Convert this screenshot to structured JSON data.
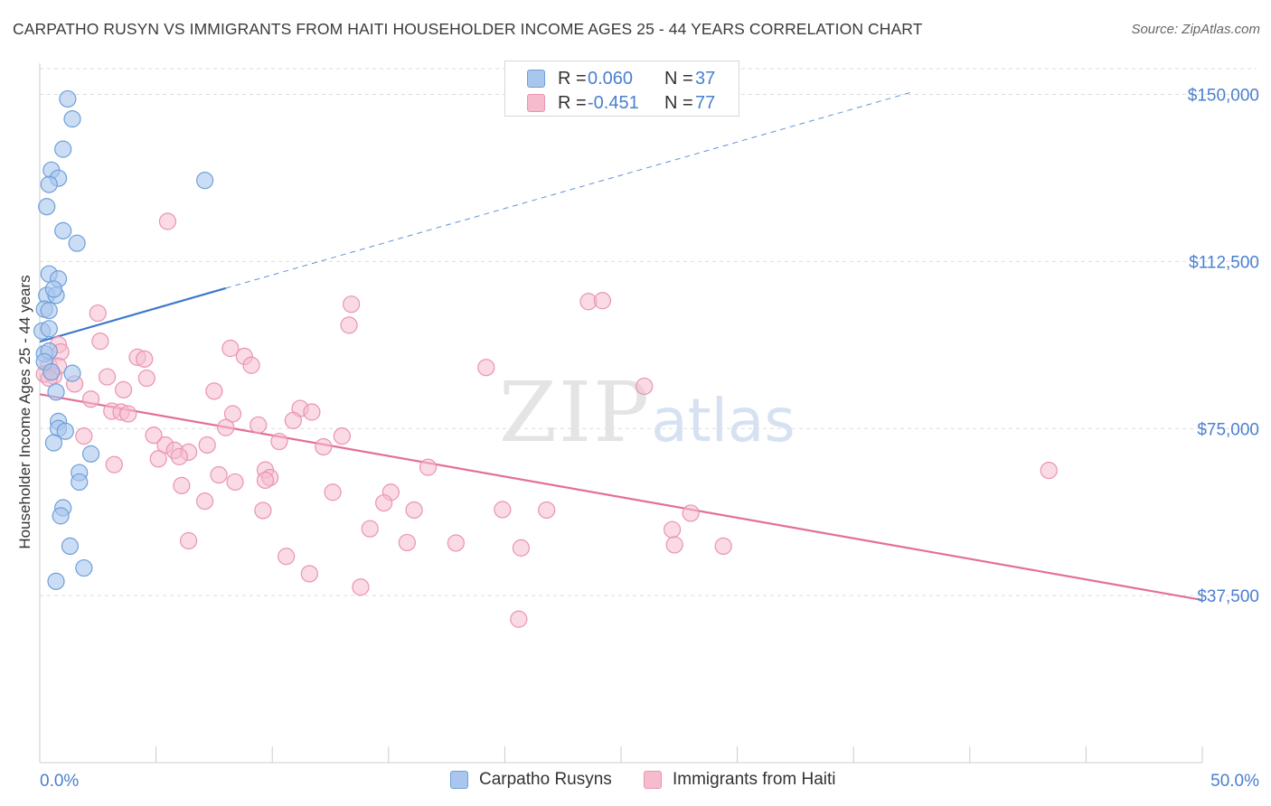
{
  "title": "CARPATHO RUSYN VS IMMIGRANTS FROM HAITI HOUSEHOLDER INCOME AGES 25 - 44 YEARS CORRELATION CHART",
  "source": "Source: ZipAtlas.com",
  "watermark": {
    "zip": "ZIP",
    "atlas": "atlas"
  },
  "stats": [
    {
      "label": "R =",
      "r": "0.060",
      "n_label": "N =",
      "n": "37"
    },
    {
      "label": "R =",
      "r": "-0.451",
      "n_label": "N =",
      "n": "77"
    }
  ],
  "legend": [
    {
      "label": "Carpatho Rusyns"
    },
    {
      "label": "Immigrants from Haiti"
    }
  ],
  "chart_data": {
    "type": "scatter",
    "title": "CARPATHO RUSYN VS IMMIGRANTS FROM HAITI HOUSEHOLDER INCOME AGES 25 - 44 YEARS CORRELATION CHART",
    "xlabel": "",
    "ylabel": "Householder Income Ages 25 - 44 years",
    "xlim": [
      0,
      50
    ],
    "ylim": [
      0,
      157000
    ],
    "x_tick_labels": [
      "0.0%",
      "50.0%"
    ],
    "y_ticks": [
      37500,
      75000,
      112500,
      150000
    ],
    "y_tick_labels": [
      "$37,500",
      "$75,000",
      "$112,500",
      "$150,000"
    ],
    "colors": {
      "blue_fill": "#a9c6ee",
      "blue_stroke": "#6f9fd8",
      "blue_line": "#3b78d0",
      "pink_fill": "#f6bccd",
      "pink_stroke": "#e994b0",
      "pink_line": "#e46f98",
      "tick_label": "#4a7fd0",
      "grid": "#dddddd"
    },
    "series": [
      {
        "name": "Carpatho Rusyns",
        "r": 0.06,
        "n": 37,
        "trend": {
          "x": [
            0,
            8
          ],
          "y": [
            94500,
            106500
          ]
        },
        "trend_dashed": {
          "x": [
            8,
            37.5
          ],
          "y": [
            106500,
            150500
          ]
        },
        "points": [
          [
            1.2,
            149000
          ],
          [
            1.4,
            144500
          ],
          [
            1.0,
            137700
          ],
          [
            0.5,
            133000
          ],
          [
            0.8,
            131200
          ],
          [
            0.4,
            129800
          ],
          [
            7.1,
            130700
          ],
          [
            0.3,
            124800
          ],
          [
            1.0,
            119400
          ],
          [
            1.6,
            116600
          ],
          [
            0.4,
            109700
          ],
          [
            0.8,
            108600
          ],
          [
            0.3,
            104900
          ],
          [
            0.7,
            104900
          ],
          [
            0.6,
            106300
          ],
          [
            0.2,
            101800
          ],
          [
            0.4,
            101500
          ],
          [
            0.1,
            96900
          ],
          [
            0.4,
            97400
          ],
          [
            0.2,
            91800
          ],
          [
            0.4,
            92400
          ],
          [
            0.2,
            90000
          ],
          [
            1.4,
            87400
          ],
          [
            0.5,
            87700
          ],
          [
            0.7,
            83200
          ],
          [
            0.8,
            76600
          ],
          [
            0.8,
            75000
          ],
          [
            1.1,
            74400
          ],
          [
            0.6,
            71800
          ],
          [
            2.2,
            69300
          ],
          [
            1.7,
            65100
          ],
          [
            1.7,
            63000
          ],
          [
            1.0,
            57200
          ],
          [
            0.9,
            55400
          ],
          [
            1.3,
            48600
          ],
          [
            1.9,
            43700
          ],
          [
            0.7,
            40700
          ]
        ]
      },
      {
        "name": "Immigrants from Haiti",
        "r": -0.451,
        "n": 77,
        "trend": {
          "x": [
            0,
            50
          ],
          "y": [
            82700,
            36500
          ]
        },
        "points": [
          [
            5.5,
            121500
          ],
          [
            23.6,
            103500
          ],
          [
            13.4,
            102900
          ],
          [
            13.3,
            98200
          ],
          [
            24.2,
            103700
          ],
          [
            2.5,
            100900
          ],
          [
            0.8,
            93800
          ],
          [
            2.6,
            94600
          ],
          [
            0.9,
            92200
          ],
          [
            8.2,
            93000
          ],
          [
            8.8,
            91200
          ],
          [
            4.2,
            91000
          ],
          [
            4.5,
            90600
          ],
          [
            0.4,
            89200
          ],
          [
            0.8,
            89000
          ],
          [
            9.1,
            89200
          ],
          [
            19.2,
            88700
          ],
          [
            0.2,
            87200
          ],
          [
            0.6,
            86800
          ],
          [
            0.4,
            86300
          ],
          [
            2.9,
            86600
          ],
          [
            4.6,
            86300
          ],
          [
            1.5,
            85000
          ],
          [
            26.0,
            84500
          ],
          [
            3.6,
            83700
          ],
          [
            7.5,
            83400
          ],
          [
            2.2,
            81600
          ],
          [
            11.2,
            79500
          ],
          [
            3.1,
            78900
          ],
          [
            3.5,
            78700
          ],
          [
            8.3,
            78300
          ],
          [
            11.7,
            78700
          ],
          [
            10.9,
            76800
          ],
          [
            3.8,
            78300
          ],
          [
            9.4,
            75800
          ],
          [
            8.0,
            75200
          ],
          [
            4.9,
            73500
          ],
          [
            13.0,
            73300
          ],
          [
            1.9,
            73300
          ],
          [
            10.3,
            72100
          ],
          [
            7.2,
            71300
          ],
          [
            5.4,
            71300
          ],
          [
            12.2,
            70900
          ],
          [
            5.8,
            70100
          ],
          [
            6.4,
            69700
          ],
          [
            6.0,
            68700
          ],
          [
            5.1,
            68200
          ],
          [
            3.2,
            66900
          ],
          [
            16.7,
            66300
          ],
          [
            9.7,
            65700
          ],
          [
            43.4,
            65600
          ],
          [
            7.7,
            64600
          ],
          [
            9.9,
            64000
          ],
          [
            9.7,
            63400
          ],
          [
            8.4,
            63000
          ],
          [
            6.1,
            62200
          ],
          [
            15.1,
            60700
          ],
          [
            12.6,
            60700
          ],
          [
            14.8,
            58300
          ],
          [
            7.1,
            58700
          ],
          [
            16.1,
            56700
          ],
          [
            9.6,
            56600
          ],
          [
            19.9,
            56800
          ],
          [
            21.8,
            56700
          ],
          [
            28.0,
            56000
          ],
          [
            14.2,
            52500
          ],
          [
            27.2,
            52300
          ],
          [
            6.4,
            49800
          ],
          [
            15.8,
            49400
          ],
          [
            17.9,
            49300
          ],
          [
            27.3,
            48900
          ],
          [
            29.4,
            48600
          ],
          [
            20.7,
            48200
          ],
          [
            10.6,
            46300
          ],
          [
            11.6,
            42400
          ],
          [
            13.8,
            39400
          ],
          [
            20.6,
            32200
          ]
        ]
      }
    ]
  }
}
